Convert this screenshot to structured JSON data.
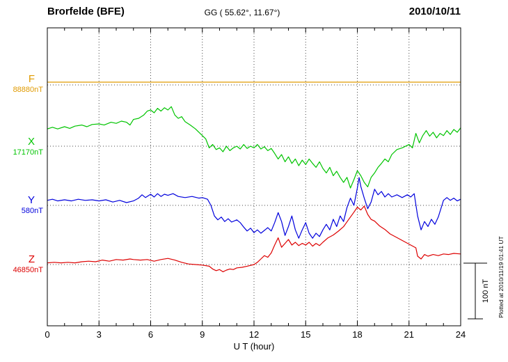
{
  "header": {
    "station": "Brorfelde (BFE)",
    "coords": "GG ( 55.62°,  11.67°)",
    "date": "2010/10/11"
  },
  "axis": {
    "xlabel": "U T (hour)"
  },
  "scale_bar": {
    "label": "100 nT",
    "span_nT": 100
  },
  "footer_note": "Plotted at 2010/11/19 01:41 UT",
  "components": [
    {
      "id": "F",
      "label": "F",
      "baseline": "88880nT",
      "color": "#e09a00"
    },
    {
      "id": "X",
      "label": "X",
      "baseline": "17170nT",
      "color": "#00c400"
    },
    {
      "id": "Y",
      "label": "Y",
      "baseline": "580nT",
      "color": "#0000dd"
    },
    {
      "id": "Z",
      "label": "Z",
      "baseline": "46850nT",
      "color": "#dd0000"
    }
  ],
  "chart_data": {
    "type": "line",
    "title": "Brorfelde (BFE) magnetogram 2010/10/11",
    "xlabel": "U T (hour)",
    "xlim": [
      0,
      24
    ],
    "x_ticks": [
      0,
      3,
      6,
      9,
      12,
      15,
      18,
      21,
      24
    ],
    "grid": "dotted vertical at 3h intervals, dotted baseline per component",
    "legend_position": "left margin component labels",
    "y_scale_note": "points are offsets in nT from each component baseline; scale bar = 100 nT",
    "series": [
      {
        "name": "F",
        "baseline_nT": 88880,
        "points": [
          [
            0,
            5
          ],
          [
            6,
            5
          ],
          [
            12,
            5
          ],
          [
            18,
            5
          ],
          [
            24,
            5
          ]
        ]
      },
      {
        "name": "X",
        "baseline_nT": 17170,
        "points": [
          [
            0,
            31
          ],
          [
            0.3,
            34
          ],
          [
            0.6,
            31
          ],
          [
            1,
            35
          ],
          [
            1.3,
            32
          ],
          [
            1.6,
            36
          ],
          [
            2,
            38
          ],
          [
            2.3,
            35
          ],
          [
            2.6,
            39
          ],
          [
            3,
            40
          ],
          [
            3.3,
            38
          ],
          [
            3.7,
            43
          ],
          [
            4,
            41
          ],
          [
            4.3,
            45
          ],
          [
            4.6,
            43
          ],
          [
            4.8,
            38
          ],
          [
            5,
            48
          ],
          [
            5.3,
            50
          ],
          [
            5.6,
            56
          ],
          [
            5.8,
            63
          ],
          [
            6,
            65
          ],
          [
            6.2,
            60
          ],
          [
            6.4,
            68
          ],
          [
            6.6,
            63
          ],
          [
            6.8,
            69
          ],
          [
            7,
            65
          ],
          [
            7.2,
            71
          ],
          [
            7.4,
            56
          ],
          [
            7.6,
            50
          ],
          [
            7.8,
            53
          ],
          [
            8,
            44
          ],
          [
            8.3,
            38
          ],
          [
            8.6,
            31
          ],
          [
            9,
            19
          ],
          [
            9.2,
            13
          ],
          [
            9.4,
            -3
          ],
          [
            9.6,
            3
          ],
          [
            9.8,
            -6
          ],
          [
            10,
            -3
          ],
          [
            10.2,
            -10
          ],
          [
            10.4,
            0
          ],
          [
            10.6,
            -8
          ],
          [
            10.8,
            -3
          ],
          [
            11,
            0
          ],
          [
            11.2,
            -5
          ],
          [
            11.4,
            3
          ],
          [
            11.6,
            -4
          ],
          [
            11.8,
            0
          ],
          [
            12,
            -3
          ],
          [
            12.2,
            3
          ],
          [
            12.4,
            -5
          ],
          [
            12.6,
            -1
          ],
          [
            12.8,
            -8
          ],
          [
            13,
            -4
          ],
          [
            13.2,
            -13
          ],
          [
            13.4,
            -23
          ],
          [
            13.6,
            -15
          ],
          [
            13.8,
            -28
          ],
          [
            14,
            -19
          ],
          [
            14.2,
            -31
          ],
          [
            14.4,
            -23
          ],
          [
            14.6,
            -35
          ],
          [
            14.8,
            -25
          ],
          [
            15,
            -33
          ],
          [
            15.2,
            -23
          ],
          [
            15.4,
            -31
          ],
          [
            15.6,
            -38
          ],
          [
            15.8,
            -28
          ],
          [
            16,
            -40
          ],
          [
            16.2,
            -48
          ],
          [
            16.4,
            -38
          ],
          [
            16.6,
            -53
          ],
          [
            16.8,
            -45
          ],
          [
            17,
            -56
          ],
          [
            17.2,
            -65
          ],
          [
            17.4,
            -56
          ],
          [
            17.6,
            -75
          ],
          [
            17.8,
            -60
          ],
          [
            18,
            -44
          ],
          [
            18.2,
            -53
          ],
          [
            18.4,
            -65
          ],
          [
            18.6,
            -73
          ],
          [
            18.8,
            -56
          ],
          [
            19,
            -48
          ],
          [
            19.2,
            -38
          ],
          [
            19.4,
            -31
          ],
          [
            19.6,
            -23
          ],
          [
            19.8,
            -28
          ],
          [
            20,
            -15
          ],
          [
            20.3,
            -6
          ],
          [
            20.6,
            -3
          ],
          [
            21,
            3
          ],
          [
            21.2,
            -3
          ],
          [
            21.4,
            23
          ],
          [
            21.6,
            6
          ],
          [
            21.8,
            19
          ],
          [
            22,
            28
          ],
          [
            22.2,
            18
          ],
          [
            22.4,
            25
          ],
          [
            22.6,
            15
          ],
          [
            22.8,
            23
          ],
          [
            23,
            19
          ],
          [
            23.2,
            28
          ],
          [
            23.4,
            21
          ],
          [
            23.6,
            30
          ],
          [
            23.8,
            25
          ],
          [
            24,
            33
          ]
        ]
      },
      {
        "name": "Y",
        "baseline_nT": 580,
        "points": [
          [
            0,
            9
          ],
          [
            0.3,
            11
          ],
          [
            0.6,
            8
          ],
          [
            1,
            10
          ],
          [
            1.4,
            8
          ],
          [
            1.8,
            11
          ],
          [
            2.2,
            9
          ],
          [
            2.6,
            10
          ],
          [
            3,
            8
          ],
          [
            3.4,
            10
          ],
          [
            3.8,
            6
          ],
          [
            4.2,
            9
          ],
          [
            4.6,
            5
          ],
          [
            5,
            8
          ],
          [
            5.3,
            13
          ],
          [
            5.5,
            19
          ],
          [
            5.7,
            14
          ],
          [
            6,
            20
          ],
          [
            6.2,
            15
          ],
          [
            6.4,
            21
          ],
          [
            6.6,
            16
          ],
          [
            6.8,
            20
          ],
          [
            7,
            18
          ],
          [
            7.3,
            21
          ],
          [
            7.6,
            16
          ],
          [
            8,
            14
          ],
          [
            8.4,
            16
          ],
          [
            8.8,
            13
          ],
          [
            9,
            14
          ],
          [
            9.3,
            11
          ],
          [
            9.5,
            0
          ],
          [
            9.7,
            -19
          ],
          [
            9.9,
            -26
          ],
          [
            10.1,
            -21
          ],
          [
            10.3,
            -29
          ],
          [
            10.5,
            -24
          ],
          [
            10.7,
            -30
          ],
          [
            11,
            -26
          ],
          [
            11.2,
            -31
          ],
          [
            11.4,
            -39
          ],
          [
            11.6,
            -46
          ],
          [
            11.8,
            -41
          ],
          [
            12,
            -49
          ],
          [
            12.2,
            -44
          ],
          [
            12.4,
            -50
          ],
          [
            12.6,
            -45
          ],
          [
            12.8,
            -40
          ],
          [
            13,
            -46
          ],
          [
            13.2,
            -31
          ],
          [
            13.4,
            -13
          ],
          [
            13.6,
            -29
          ],
          [
            13.8,
            -54
          ],
          [
            14,
            -38
          ],
          [
            14.2,
            -19
          ],
          [
            14.4,
            -44
          ],
          [
            14.6,
            -59
          ],
          [
            14.8,
            -44
          ],
          [
            15,
            -31
          ],
          [
            15.2,
            -50
          ],
          [
            15.4,
            -59
          ],
          [
            15.6,
            -50
          ],
          [
            15.8,
            -56
          ],
          [
            16,
            -44
          ],
          [
            16.2,
            -34
          ],
          [
            16.4,
            -44
          ],
          [
            16.6,
            -25
          ],
          [
            16.8,
            -38
          ],
          [
            17,
            -19
          ],
          [
            17.2,
            -29
          ],
          [
            17.4,
            -4
          ],
          [
            17.6,
            13
          ],
          [
            17.8,
            0
          ],
          [
            18,
            31
          ],
          [
            18.1,
            50
          ],
          [
            18.2,
            34
          ],
          [
            18.4,
            13
          ],
          [
            18.6,
            -6
          ],
          [
            18.8,
            6
          ],
          [
            19,
            29
          ],
          [
            19.2,
            19
          ],
          [
            19.4,
            25
          ],
          [
            19.6,
            15
          ],
          [
            19.8,
            21
          ],
          [
            20,
            15
          ],
          [
            20.3,
            19
          ],
          [
            20.6,
            14
          ],
          [
            20.9,
            19
          ],
          [
            21.1,
            15
          ],
          [
            21.3,
            21
          ],
          [
            21.5,
            -19
          ],
          [
            21.7,
            -44
          ],
          [
            21.9,
            -29
          ],
          [
            22.1,
            -38
          ],
          [
            22.3,
            -25
          ],
          [
            22.5,
            -34
          ],
          [
            22.7,
            -21
          ],
          [
            23,
            9
          ],
          [
            23.2,
            14
          ],
          [
            23.4,
            9
          ],
          [
            23.6,
            13
          ],
          [
            23.8,
            8
          ],
          [
            24,
            11
          ]
        ]
      },
      {
        "name": "Z",
        "baseline_nT": 46850,
        "points": [
          [
            0,
            3
          ],
          [
            0.4,
            4
          ],
          [
            0.8,
            3
          ],
          [
            1.2,
            4
          ],
          [
            1.6,
            3
          ],
          [
            2,
            5
          ],
          [
            2.4,
            6
          ],
          [
            2.8,
            5
          ],
          [
            3.2,
            8
          ],
          [
            3.6,
            6
          ],
          [
            4,
            9
          ],
          [
            4.4,
            8
          ],
          [
            4.8,
            10
          ],
          [
            5,
            9
          ],
          [
            5.4,
            8
          ],
          [
            5.8,
            9
          ],
          [
            6.2,
            6
          ],
          [
            6.6,
            9
          ],
          [
            7,
            11
          ],
          [
            7.4,
            8
          ],
          [
            7.8,
            4
          ],
          [
            8.2,
            1
          ],
          [
            8.6,
            0
          ],
          [
            9,
            -1
          ],
          [
            9.4,
            -3
          ],
          [
            9.6,
            -8
          ],
          [
            9.8,
            -11
          ],
          [
            10,
            -9
          ],
          [
            10.2,
            -13
          ],
          [
            10.4,
            -10
          ],
          [
            10.6,
            -8
          ],
          [
            10.8,
            -9
          ],
          [
            11,
            -6
          ],
          [
            11.3,
            -5
          ],
          [
            11.6,
            -3
          ],
          [
            12,
            0
          ],
          [
            12.2,
            4
          ],
          [
            12.4,
            10
          ],
          [
            12.6,
            16
          ],
          [
            12.8,
            13
          ],
          [
            13,
            21
          ],
          [
            13.2,
            35
          ],
          [
            13.4,
            48
          ],
          [
            13.6,
            31
          ],
          [
            13.8,
            38
          ],
          [
            14,
            45
          ],
          [
            14.2,
            35
          ],
          [
            14.4,
            40
          ],
          [
            14.6,
            34
          ],
          [
            14.8,
            38
          ],
          [
            15,
            35
          ],
          [
            15.2,
            40
          ],
          [
            15.4,
            33
          ],
          [
            15.6,
            38
          ],
          [
            15.8,
            34
          ],
          [
            16,
            40
          ],
          [
            16.3,
            48
          ],
          [
            16.6,
            53
          ],
          [
            16.9,
            60
          ],
          [
            17.2,
            68
          ],
          [
            17.5,
            81
          ],
          [
            17.8,
            94
          ],
          [
            18,
            103
          ],
          [
            18.2,
            98
          ],
          [
            18.4,
            105
          ],
          [
            18.6,
            90
          ],
          [
            18.8,
            81
          ],
          [
            19,
            78
          ],
          [
            19.3,
            69
          ],
          [
            19.6,
            63
          ],
          [
            19.9,
            55
          ],
          [
            20.2,
            50
          ],
          [
            20.5,
            45
          ],
          [
            20.8,
            40
          ],
          [
            21.1,
            35
          ],
          [
            21.4,
            30
          ],
          [
            21.5,
            15
          ],
          [
            21.7,
            10
          ],
          [
            21.9,
            18
          ],
          [
            22.1,
            15
          ],
          [
            22.4,
            18
          ],
          [
            22.7,
            16
          ],
          [
            23,
            19
          ],
          [
            23.3,
            18
          ],
          [
            23.6,
            20
          ],
          [
            24,
            19
          ]
        ]
      }
    ]
  }
}
